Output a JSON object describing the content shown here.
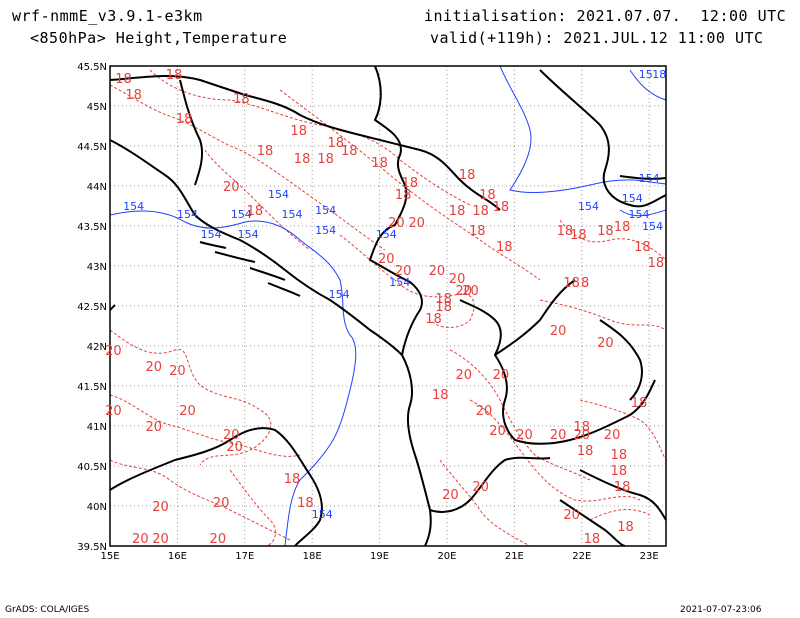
{
  "header": {
    "model": "wrf-nmmE_v3.9.1-e3km",
    "fields": "<850hPa> Height,Temperature",
    "init": "initialisation: 2021.07.07.  12:00 UTC",
    "valid": "valid(+119h): 2021.JUL.12 11:00 UTC"
  },
  "footer": {
    "credit": "GrADS: COLA/IGES",
    "stamp": "2021-07-07-23:06"
  },
  "colors": {
    "coast": "#000000",
    "temperature": "#e8403c",
    "height": "#2040ff",
    "grid": "#9a9a9a"
  },
  "map": {
    "lon_min": 15,
    "lon_max": 23.25,
    "lat_min": 39.5,
    "lat_max": 45.5,
    "lon_ticks": [
      {
        "v": 15,
        "t": "15E"
      },
      {
        "v": 16,
        "t": "16E"
      },
      {
        "v": 17,
        "t": "17E"
      },
      {
        "v": 18,
        "t": "18E"
      },
      {
        "v": 19,
        "t": "19E"
      },
      {
        "v": 20,
        "t": "20E"
      },
      {
        "v": 21,
        "t": "21E"
      },
      {
        "v": 22,
        "t": "22E"
      },
      {
        "v": 23,
        "t": "23E"
      }
    ],
    "lat_ticks": [
      {
        "v": 45.5,
        "t": "45.5N"
      },
      {
        "v": 45,
        "t": "45N"
      },
      {
        "v": 44.5,
        "t": "44.5N"
      },
      {
        "v": 44,
        "t": "44N"
      },
      {
        "v": 43.5,
        "t": "43.5N"
      },
      {
        "v": 43,
        "t": "43N"
      },
      {
        "v": 42.5,
        "t": "42.5N"
      },
      {
        "v": 42,
        "t": "42N"
      },
      {
        "v": 41.5,
        "t": "41.5N"
      },
      {
        "v": 41,
        "t": "41N"
      },
      {
        "v": 40.5,
        "t": "40.5N"
      },
      {
        "v": 40,
        "t": "40N"
      },
      {
        "v": 39.5,
        "t": "39.5N"
      }
    ],
    "temperature_labels": [
      {
        "t": "18",
        "lon": 15.2,
        "lat": 45.35
      },
      {
        "t": "18",
        "lon": 15.35,
        "lat": 45.15
      },
      {
        "t": "18",
        "lon": 15.95,
        "lat": 45.4
      },
      {
        "t": "18",
        "lon": 16.95,
        "lat": 45.1
      },
      {
        "t": "18",
        "lon": 16.1,
        "lat": 44.85
      },
      {
        "t": "18",
        "lon": 17.8,
        "lat": 44.7
      },
      {
        "t": "18",
        "lon": 18.35,
        "lat": 44.55
      },
      {
        "t": "18",
        "lon": 17.3,
        "lat": 44.45
      },
      {
        "t": "18",
        "lon": 17.85,
        "lat": 44.35
      },
      {
        "t": "18",
        "lon": 18.2,
        "lat": 44.35
      },
      {
        "t": "18",
        "lon": 18.55,
        "lat": 44.45
      },
      {
        "t": "18",
        "lon": 19.0,
        "lat": 44.3
      },
      {
        "t": "18",
        "lon": 19.45,
        "lat": 44.05
      },
      {
        "t": "18",
        "lon": 20.3,
        "lat": 44.15
      },
      {
        "t": "18",
        "lon": 20.6,
        "lat": 43.9
      },
      {
        "t": "18",
        "lon": 20.5,
        "lat": 43.7
      },
      {
        "t": "18",
        "lon": 20.8,
        "lat": 43.75
      },
      {
        "t": "18",
        "lon": 20.15,
        "lat": 43.7
      },
      {
        "t": "18",
        "lon": 19.35,
        "lat": 43.9
      },
      {
        "t": "18",
        "lon": 17.15,
        "lat": 43.7
      },
      {
        "t": "18",
        "lon": 20.45,
        "lat": 43.45
      },
      {
        "t": "18",
        "lon": 20.85,
        "lat": 43.25
      },
      {
        "t": "18",
        "lon": 21.75,
        "lat": 43.45
      },
      {
        "t": "18",
        "lon": 21.95,
        "lat": 43.4
      },
      {
        "t": "18",
        "lon": 22.35,
        "lat": 43.45
      },
      {
        "t": "18",
        "lon": 22.6,
        "lat": 43.5
      },
      {
        "t": "18",
        "lon": 22.9,
        "lat": 43.25
      },
      {
        "t": "18",
        "lon": 21.85,
        "lat": 42.8
      },
      {
        "t": "18",
        "lon": 23.1,
        "lat": 43.05
      },
      {
        "t": "18",
        "lon": 19.95,
        "lat": 42.6
      },
      {
        "t": "18",
        "lon": 19.8,
        "lat": 42.35
      },
      {
        "t": "18",
        "lon": 19.95,
        "lat": 42.5
      },
      {
        "t": "20",
        "lon": 16.8,
        "lat": 44.0
      },
      {
        "t": "20",
        "lon": 19.25,
        "lat": 43.55
      },
      {
        "t": "20",
        "lon": 19.55,
        "lat": 43.55
      },
      {
        "t": "20",
        "lon": 19.1,
        "lat": 43.1
      },
      {
        "t": "20",
        "lon": 19.35,
        "lat": 42.95
      },
      {
        "t": "20",
        "lon": 19.85,
        "lat": 42.95
      },
      {
        "t": "20",
        "lon": 20.15,
        "lat": 42.85
      },
      {
        "t": "20",
        "lon": 20.25,
        "lat": 42.7
      },
      {
        "t": "20",
        "lon": 20.35,
        "lat": 42.7
      },
      {
        "t": "20",
        "lon": 21.65,
        "lat": 42.2
      },
      {
        "t": "20",
        "lon": 22.35,
        "lat": 42.05
      },
      {
        "t": "8",
        "lon": 22.05,
        "lat": 42.8
      },
      {
        "t": "20",
        "lon": 15.05,
        "lat": 41.95
      },
      {
        "t": "20",
        "lon": 15.65,
        "lat": 41.75
      },
      {
        "t": "20",
        "lon": 16.0,
        "lat": 41.7
      },
      {
        "t": "20",
        "lon": 15.05,
        "lat": 41.2
      },
      {
        "t": "20",
        "lon": 16.15,
        "lat": 41.2
      },
      {
        "t": "20",
        "lon": 15.65,
        "lat": 41.0
      },
      {
        "t": "20",
        "lon": 16.8,
        "lat": 40.9
      },
      {
        "t": "20",
        "lon": 16.85,
        "lat": 40.75
      },
      {
        "t": "20",
        "lon": 20.25,
        "lat": 41.65
      },
      {
        "t": "20",
        "lon": 20.8,
        "lat": 41.65
      },
      {
        "t": "20",
        "lon": 20.55,
        "lat": 41.2
      },
      {
        "t": "20",
        "lon": 20.75,
        "lat": 40.95
      },
      {
        "t": "20",
        "lon": 21.15,
        "lat": 40.9
      },
      {
        "t": "20",
        "lon": 21.65,
        "lat": 40.9
      },
      {
        "t": "20",
        "lon": 22.0,
        "lat": 40.9
      },
      {
        "t": "20",
        "lon": 22.45,
        "lat": 40.9
      },
      {
        "t": "20",
        "lon": 20.5,
        "lat": 40.25
      },
      {
        "t": "20",
        "lon": 20.05,
        "lat": 40.15
      },
      {
        "t": "20",
        "lon": 15.75,
        "lat": 40.0
      },
      {
        "t": "20",
        "lon": 16.65,
        "lat": 40.05
      },
      {
        "t": "20",
        "lon": 15.45,
        "lat": 39.6
      },
      {
        "t": "20",
        "lon": 15.75,
        "lat": 39.6
      },
      {
        "t": "20",
        "lon": 16.6,
        "lat": 39.6
      },
      {
        "t": "20",
        "lon": 21.85,
        "lat": 39.9
      },
      {
        "t": "18",
        "lon": 19.9,
        "lat": 41.4
      },
      {
        "t": "18",
        "lon": 22.0,
        "lat": 41.0
      },
      {
        "t": "18",
        "lon": 22.05,
        "lat": 40.7
      },
      {
        "t": "18",
        "lon": 22.55,
        "lat": 40.65
      },
      {
        "t": "18",
        "lon": 22.6,
        "lat": 40.25
      },
      {
        "t": "18",
        "lon": 22.55,
        "lat": 40.45
      },
      {
        "t": "18",
        "lon": 22.65,
        "lat": 39.75
      },
      {
        "t": "18",
        "lon": 22.15,
        "lat": 39.6
      },
      {
        "t": "18",
        "lon": 22.85,
        "lat": 41.3
      },
      {
        "t": "18",
        "lon": 17.7,
        "lat": 40.35
      },
      {
        "t": "18",
        "lon": 17.9,
        "lat": 40.05
      }
    ],
    "height_labels": [
      {
        "t": "154",
        "lon": 15.35,
        "lat": 43.75
      },
      {
        "t": "154",
        "lon": 16.15,
        "lat": 43.65
      },
      {
        "t": "154",
        "lon": 16.5,
        "lat": 43.4
      },
      {
        "t": "154",
        "lon": 16.95,
        "lat": 43.65
      },
      {
        "t": "154",
        "lon": 17.05,
        "lat": 43.4
      },
      {
        "t": "154",
        "lon": 17.5,
        "lat": 43.9
      },
      {
        "t": "154",
        "lon": 17.7,
        "lat": 43.65
      },
      {
        "t": "154",
        "lon": 18.2,
        "lat": 43.7
      },
      {
        "t": "154",
        "lon": 18.2,
        "lat": 43.45
      },
      {
        "t": "154",
        "lon": 19.1,
        "lat": 43.4
      },
      {
        "t": "154",
        "lon": 19.3,
        "lat": 42.8
      },
      {
        "t": "154",
        "lon": 18.4,
        "lat": 42.65
      },
      {
        "t": "154",
        "lon": 22.1,
        "lat": 43.75
      },
      {
        "t": "154",
        "lon": 22.75,
        "lat": 43.85
      },
      {
        "t": "154",
        "lon": 22.85,
        "lat": 43.65
      },
      {
        "t": "154",
        "lon": 23.05,
        "lat": 43.5
      },
      {
        "t": "154",
        "lon": 23.0,
        "lat": 44.1
      },
      {
        "t": "154",
        "lon": 18.15,
        "lat": 39.9
      },
      {
        "t": "15",
        "lon": 22.95,
        "lat": 45.4
      },
      {
        "t": "18",
        "lon": 23.15,
        "lat": 45.4
      }
    ]
  }
}
